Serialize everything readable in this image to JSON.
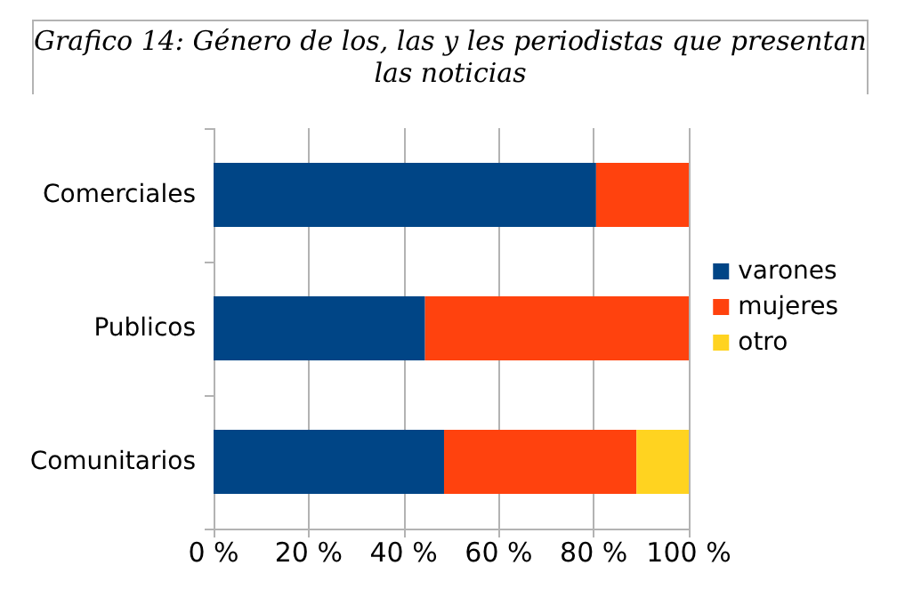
{
  "chart_data": {
    "type": "bar",
    "orientation": "horizontal",
    "stacked": true,
    "title": "Grafico 14: Género de los, las y les periodistas que presentan las noticias",
    "categories": [
      "Comerciales",
      "Publicos",
      "Comunitarios"
    ],
    "series": [
      {
        "name": "varones",
        "color": "#004586",
        "values": [
          80.5,
          44.5,
          48.5
        ]
      },
      {
        "name": "mujeres",
        "color": "#ff420e",
        "values": [
          19.5,
          55.5,
          40.5
        ]
      },
      {
        "name": "otro",
        "color": "#ffd320",
        "values": [
          null,
          null,
          11
        ]
      }
    ],
    "xlim": [
      0,
      100
    ],
    "xticks": [
      {
        "value": 0,
        "label": "0 %"
      },
      {
        "value": 20,
        "label": "20 %"
      },
      {
        "value": 40,
        "label": "40 %"
      },
      {
        "value": 60,
        "label": "60 %"
      },
      {
        "value": 80,
        "label": "80 %"
      },
      {
        "value": 100,
        "label": "100 %"
      }
    ],
    "grid": "x",
    "legend": "right"
  }
}
